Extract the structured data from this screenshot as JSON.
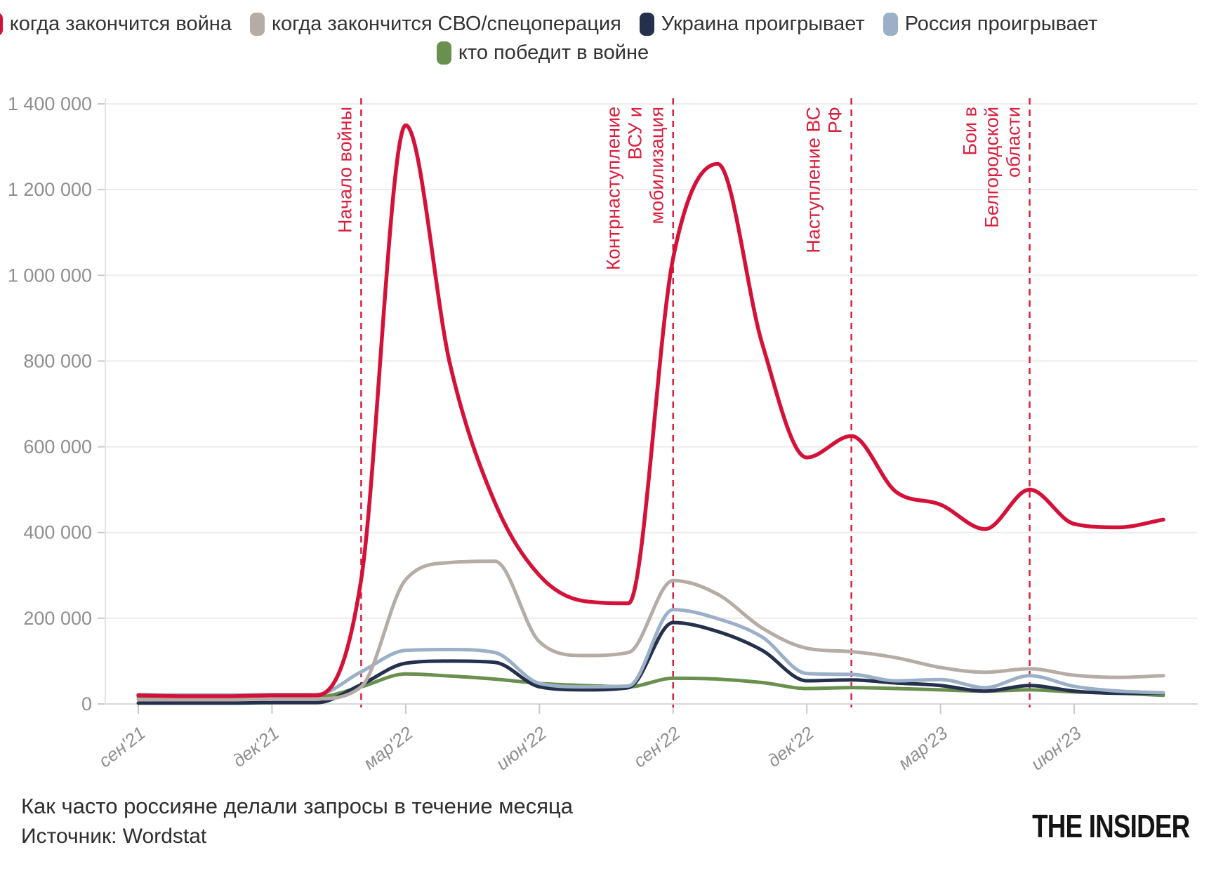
{
  "chart_data": {
    "type": "line",
    "title": "Как часто россияне делали запросы в течение месяца",
    "source": "Источник: Wordstat",
    "legend_position": "top",
    "grid": true,
    "ylim": [
      0,
      1400000
    ],
    "y_ticks": [
      {
        "value": 0,
        "label": "0"
      },
      {
        "value": 200000,
        "label": "200 000"
      },
      {
        "value": 400000,
        "label": "400 000"
      },
      {
        "value": 600000,
        "label": "600 000"
      },
      {
        "value": 800000,
        "label": "800 000"
      },
      {
        "value": 1000000,
        "label": "1 000 000"
      },
      {
        "value": 1200000,
        "label": "1 200 000"
      },
      {
        "value": 1400000,
        "label": "1 400 000"
      }
    ],
    "categories": [
      "сен'21",
      "окт'21",
      "ноя'21",
      "дек'21",
      "янв'22",
      "фев'22",
      "мар'22",
      "апр'22",
      "май'22",
      "июн'22",
      "июл'22",
      "авг'22",
      "сен'22",
      "окт'22",
      "ноя'22",
      "дек'22",
      "янв'23",
      "фев'23",
      "мар'23",
      "апр'23",
      "май'23",
      "июн'23",
      "июл'23",
      "авг'23"
    ],
    "x_tick_indices": [
      0,
      3,
      6,
      9,
      12,
      15,
      18,
      21
    ],
    "series": [
      {
        "name": "когда закончится война",
        "color": "#d41239",
        "values": [
          20000,
          18000,
          18000,
          20000,
          20000,
          290000,
          1350000,
          790000,
          470000,
          300000,
          240000,
          235000,
          1040000,
          1260000,
          840000,
          575000,
          625000,
          495000,
          465000,
          408000,
          500000,
          420000,
          412000,
          430000
        ]
      },
      {
        "name": "когда закончится СВО/спецоперация",
        "color": "#b5aca6",
        "values": [
          10000,
          10000,
          10000,
          12000,
          12000,
          40000,
          290000,
          330000,
          333000,
          145000,
          113000,
          120000,
          288000,
          256000,
          177000,
          130000,
          122000,
          108000,
          85000,
          74000,
          82000,
          67000,
          62000,
          66000
        ]
      },
      {
        "name": "Украина проигрывает",
        "color": "#24304c",
        "values": [
          2000,
          2000,
          2000,
          3000,
          3000,
          45000,
          95000,
          100000,
          97000,
          40000,
          33000,
          38000,
          190000,
          169000,
          125000,
          54000,
          56000,
          49000,
          43000,
          30000,
          43000,
          30000,
          25000,
          25000
        ]
      },
      {
        "name": "Россия проигрывает",
        "color": "#9bb0c7",
        "values": [
          22000,
          21000,
          21000,
          22000,
          22000,
          75000,
          125000,
          127000,
          120000,
          48000,
          40000,
          42000,
          220000,
          199000,
          156000,
          71000,
          69000,
          54000,
          57000,
          38000,
          66000,
          41000,
          30000,
          26000
        ]
      },
      {
        "name": "кто победит в войне",
        "color": "#69904f",
        "values": [
          15000,
          15000,
          15000,
          16000,
          16000,
          40000,
          70000,
          65000,
          58000,
          48000,
          43000,
          40000,
          60000,
          58000,
          50000,
          36000,
          38000,
          36000,
          33000,
          30000,
          33000,
          28000,
          25000,
          20000
        ]
      }
    ],
    "draw_order": [
      4,
      2,
      3,
      1,
      0
    ],
    "annotation_color": "#da1f3d",
    "annotations": [
      {
        "lines": [
          "Начало войны"
        ],
        "month_index": 5
      },
      {
        "lines": [
          "Контрнаступление",
          "ВСУ и",
          "мобилизация"
        ],
        "month_index": 12
      },
      {
        "lines": [
          "Наступление ВС",
          "РФ"
        ],
        "month_index": 16
      },
      {
        "lines": [
          "Бои в",
          "Белгородской",
          "области"
        ],
        "month_index": 20
      }
    ]
  },
  "footer": {
    "logo": "THE INSIDER"
  }
}
